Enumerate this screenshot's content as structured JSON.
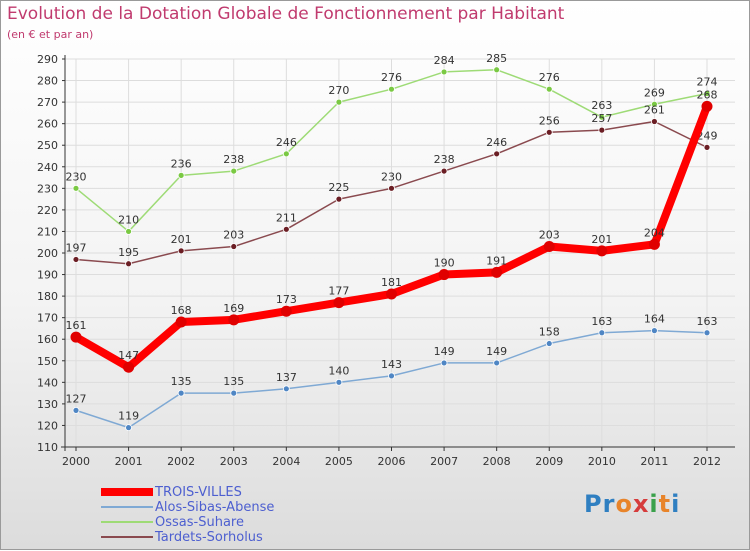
{
  "header": {
    "title": "Evolution de la Dotation Globale de Fonctionnement par Habitant",
    "subtitle": "(en € et par an)"
  },
  "brand": {
    "logo_text": "Proxiti"
  },
  "colors": {
    "title": "#c03a6e",
    "grid": "#dddddd",
    "axis": "#333333",
    "legend_text": "#4d5fd0"
  },
  "chart_data": {
    "type": "line",
    "title": "Evolution de la Dotation Globale de Fonctionnement par Habitant",
    "subtitle": "(en € et par an)",
    "xlabel": "",
    "ylabel": "",
    "x": [
      "2000",
      "2001",
      "2002",
      "2003",
      "2004",
      "2005",
      "2006",
      "2007",
      "2008",
      "2009",
      "2010",
      "2011",
      "2012"
    ],
    "ylim": [
      110,
      290
    ],
    "yticks": [
      110,
      120,
      130,
      140,
      150,
      160,
      170,
      180,
      190,
      200,
      210,
      220,
      230,
      240,
      250,
      260,
      270,
      280,
      290
    ],
    "grid": true,
    "legend_position": "bottom-left",
    "series": [
      {
        "name": "TROIS-VILLES",
        "color": "#ff0000",
        "marker": "#e00000",
        "emphasis": true,
        "values": [
          161,
          147,
          168,
          169,
          173,
          177,
          181,
          190,
          191,
          203,
          201,
          204,
          268
        ]
      },
      {
        "name": "Alos-Sibas-Abense",
        "color": "#7fa9d4",
        "marker": "#4f86c4",
        "emphasis": false,
        "values": [
          127,
          119,
          135,
          135,
          137,
          140,
          143,
          149,
          149,
          158,
          163,
          164,
          163
        ]
      },
      {
        "name": "Ossas-Suhare",
        "color": "#9edb76",
        "marker": "#7ac943",
        "emphasis": false,
        "values": [
          230,
          210,
          236,
          238,
          246,
          270,
          276,
          284,
          285,
          276,
          263,
          269,
          274
        ]
      },
      {
        "name": "Tardets-Sorholus",
        "color": "#8a4a4f",
        "marker": "#6b1e24",
        "emphasis": false,
        "values": [
          197,
          195,
          201,
          203,
          211,
          225,
          230,
          238,
          246,
          256,
          257,
          261,
          249
        ]
      }
    ]
  }
}
